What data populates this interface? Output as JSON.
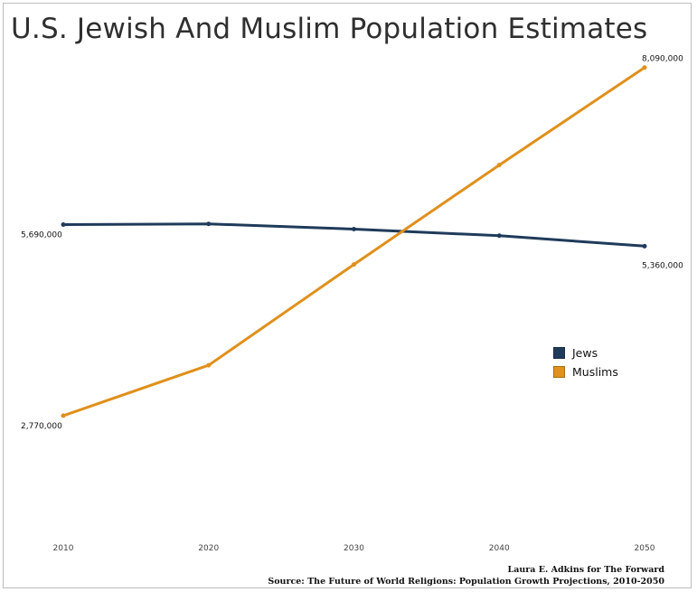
{
  "chart_data": {
    "type": "line",
    "title": "U.S. Jewish And Muslim Population Estimates",
    "x": [
      2010,
      2020,
      2030,
      2040,
      2050
    ],
    "x_tick_labels": [
      "2010",
      "2020",
      "2030",
      "2040",
      "2050"
    ],
    "series": [
      {
        "name": "Jews",
        "color": "#1f3b5a",
        "values": [
          5690000,
          5700000,
          5620000,
          5520000,
          5360000
        ],
        "value_labels": {
          "first": "5,690,000",
          "last": "5,360,000"
        }
      },
      {
        "name": "Muslims",
        "color": "#e0901c",
        "values": [
          2770000,
          3540000,
          5080000,
          6600000,
          8090000
        ],
        "value_labels": {
          "first": "2,770,000",
          "last": "8,090,000"
        }
      }
    ],
    "ylim": [
      0,
      8300000
    ],
    "xlabel": "",
    "ylabel": "",
    "legend_position": "right",
    "grid": false,
    "credit": "Laura E. Adkins for The Forward",
    "source": "Source: The Future of World Religions: Population Growth Projections, 2010-2050"
  }
}
